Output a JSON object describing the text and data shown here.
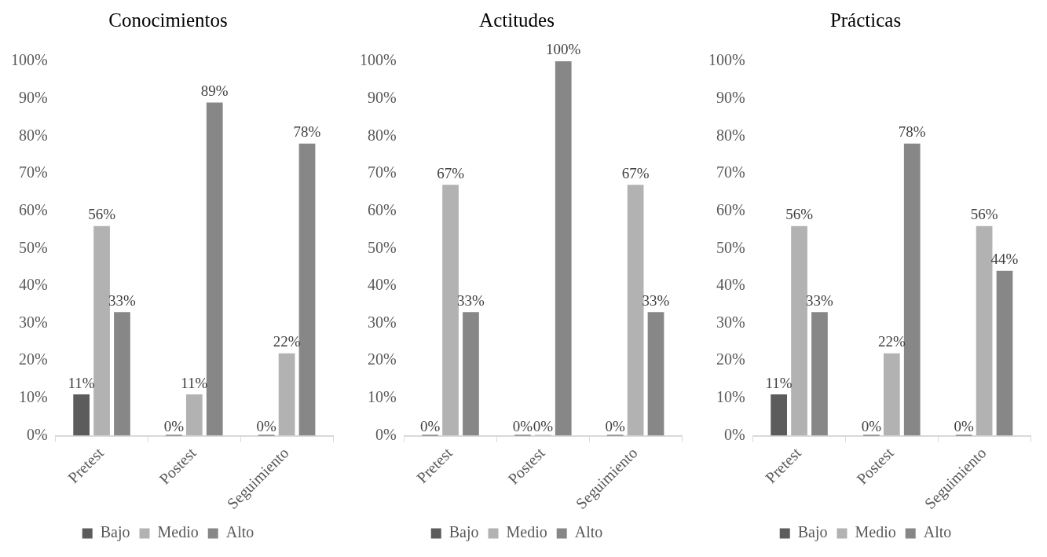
{
  "chart_data": [
    {
      "type": "bar",
      "title": "Conocimientos",
      "categories": [
        "Pretest",
        "Postest",
        "Seguimiento"
      ],
      "series": [
        {
          "name": "Bajo",
          "color": "#5c5c5c",
          "values": [
            11,
            0,
            0
          ],
          "value_labels": [
            "11%",
            "0%",
            "0%"
          ]
        },
        {
          "name": "Medio",
          "color": "#b2b2b2",
          "values": [
            56,
            11,
            22
          ],
          "value_labels": [
            "56%",
            "11%",
            "22%"
          ]
        },
        {
          "name": "Alto",
          "color": "#878787",
          "values": [
            33,
            89,
            78
          ],
          "value_labels": [
            "33%",
            "89%",
            "78%"
          ]
        }
      ],
      "ylim": [
        0,
        100
      ],
      "yticks": [
        {
          "value": 0,
          "label": "0%"
        },
        {
          "value": 10,
          "label": "10%"
        },
        {
          "value": 20,
          "label": "20%"
        },
        {
          "value": 30,
          "label": "30%"
        },
        {
          "value": 40,
          "label": "40%"
        },
        {
          "value": 50,
          "label": "50%"
        },
        {
          "value": 60,
          "label": "60%"
        },
        {
          "value": 70,
          "label": "70%"
        },
        {
          "value": 80,
          "label": "80%"
        },
        {
          "value": 90,
          "label": "90%"
        },
        {
          "value": 100,
          "label": "100%"
        }
      ],
      "grid": false,
      "legend": "bottom"
    },
    {
      "type": "bar",
      "title": "Actitudes",
      "categories": [
        "Pretest",
        "Postest",
        "Seguimiento"
      ],
      "series": [
        {
          "name": "Bajo",
          "color": "#5c5c5c",
          "values": [
            0,
            0,
            0
          ],
          "value_labels": [
            "0%",
            "0%",
            "0%"
          ]
        },
        {
          "name": "Medio",
          "color": "#b2b2b2",
          "values": [
            67,
            0,
            67
          ],
          "value_labels": [
            "67%",
            "0%",
            "67%"
          ]
        },
        {
          "name": "Alto",
          "color": "#878787",
          "values": [
            33,
            100,
            33
          ],
          "value_labels": [
            "33%",
            "100%",
            "33%"
          ]
        }
      ],
      "ylim": [
        0,
        100
      ],
      "yticks": [
        {
          "value": 0,
          "label": "0%"
        },
        {
          "value": 10,
          "label": "10%"
        },
        {
          "value": 20,
          "label": "20%"
        },
        {
          "value": 30,
          "label": "30%"
        },
        {
          "value": 40,
          "label": "40%"
        },
        {
          "value": 50,
          "label": "50%"
        },
        {
          "value": 60,
          "label": "60%"
        },
        {
          "value": 70,
          "label": "70%"
        },
        {
          "value": 80,
          "label": "80%"
        },
        {
          "value": 90,
          "label": "90%"
        },
        {
          "value": 100,
          "label": "100%"
        }
      ],
      "grid": false,
      "legend": "bottom"
    },
    {
      "type": "bar",
      "title": "Prácticas",
      "categories": [
        "Pretest",
        "Postest",
        "Seguimiento"
      ],
      "series": [
        {
          "name": "Bajo",
          "color": "#5c5c5c",
          "values": [
            11,
            0,
            0
          ],
          "value_labels": [
            "11%",
            "0%",
            "0%"
          ]
        },
        {
          "name": "Medio",
          "color": "#b2b2b2",
          "values": [
            56,
            22,
            56
          ],
          "value_labels": [
            "56%",
            "22%",
            "56%"
          ]
        },
        {
          "name": "Alto",
          "color": "#878787",
          "values": [
            33,
            78,
            44
          ],
          "value_labels": [
            "33%",
            "78%",
            "44%"
          ]
        }
      ],
      "ylim": [
        0,
        100
      ],
      "yticks": [
        {
          "value": 0,
          "label": "0%"
        },
        {
          "value": 10,
          "label": "10%"
        },
        {
          "value": 20,
          "label": "20%"
        },
        {
          "value": 30,
          "label": "30%"
        },
        {
          "value": 40,
          "label": "40%"
        },
        {
          "value": 50,
          "label": "50%"
        },
        {
          "value": 60,
          "label": "60%"
        },
        {
          "value": 70,
          "label": "70%"
        },
        {
          "value": 80,
          "label": "80%"
        },
        {
          "value": 90,
          "label": "90%"
        },
        {
          "value": 100,
          "label": "100%"
        }
      ],
      "grid": false,
      "legend": "bottom"
    }
  ]
}
